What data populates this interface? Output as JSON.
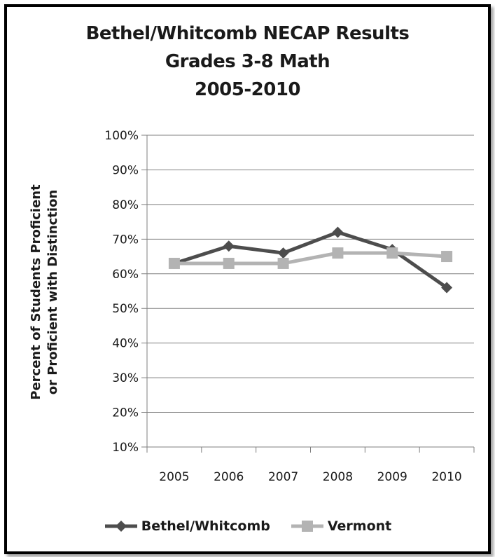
{
  "chart_data": {
    "type": "line",
    "title_lines": [
      "Bethel/Whitcomb NECAP Results",
      "Grades 3-8 Math",
      "2005-2010"
    ],
    "ylabel_lines": [
      "Percent of Students Proficient",
      "or Proficient with Distinction"
    ],
    "xlabel": "",
    "categories": [
      "2005",
      "2006",
      "2007",
      "2008",
      "2009",
      "2010"
    ],
    "y_ticks": [
      "10%",
      "20%",
      "30%",
      "40%",
      "50%",
      "60%",
      "70%",
      "80%",
      "90%",
      "100%"
    ],
    "ylim": [
      10,
      100
    ],
    "y_unit": "%",
    "grid": true,
    "legend_position": "bottom",
    "series": [
      {
        "name": "Bethel/Whitcomb",
        "values": [
          63,
          68,
          66,
          72,
          67,
          56
        ],
        "color": "#4d4d4d",
        "marker": "diamond"
      },
      {
        "name": "Vermont",
        "values": [
          63,
          63,
          63,
          66,
          66,
          65
        ],
        "color": "#b3b3b3",
        "marker": "square"
      }
    ]
  }
}
